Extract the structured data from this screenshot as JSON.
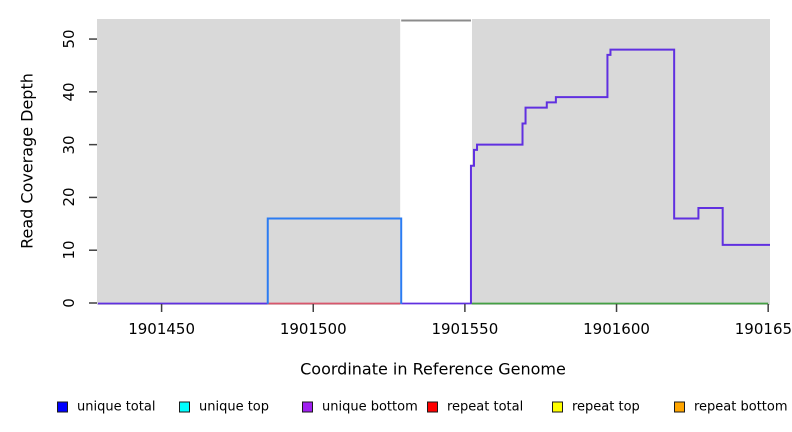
{
  "axes": {
    "x": {
      "label": "Coordinate in Reference Genome",
      "ticks": [
        1901450,
        1901500,
        1901550,
        1901600,
        1901650
      ],
      "domain": [
        1901428.7,
        1901650.6
      ]
    },
    "y": {
      "label": "Read Coverage Depth",
      "ticks": [
        0,
        10,
        20,
        30,
        40,
        50
      ],
      "domain": [
        0,
        53.8
      ]
    }
  },
  "chart_data": {
    "type": "area",
    "description": "Step-style read coverage depth across a reference genome window",
    "x_domain": [
      1901428.7,
      1901650.6
    ],
    "y_domain": [
      0,
      53.8
    ],
    "unique_coverage_steps": [
      {
        "start": 1901552,
        "end": 1901553,
        "depth": 26
      },
      {
        "start": 1901553,
        "end": 1901554,
        "depth": 29
      },
      {
        "start": 1901554,
        "end": 1901569,
        "depth": 30
      },
      {
        "start": 1901569,
        "end": 1901570,
        "depth": 34
      },
      {
        "start": 1901570,
        "end": 1901577,
        "depth": 37
      },
      {
        "start": 1901577,
        "end": 1901580,
        "depth": 38
      },
      {
        "start": 1901580,
        "end": 1901597,
        "depth": 39
      },
      {
        "start": 1901597,
        "end": 1901598,
        "depth": 47
      },
      {
        "start": 1901598,
        "end": 1901619,
        "depth": 48
      },
      {
        "start": 1901619,
        "end": 1901627,
        "depth": 16
      },
      {
        "start": 1901627,
        "end": 1901635,
        "depth": 18
      },
      {
        "start": 1901635,
        "end": 1901651,
        "depth": 11
      }
    ],
    "blue_rect_region": {
      "start": 1901485,
      "end": 1901529,
      "depth": 16
    },
    "masked_region": {
      "start": 1901529,
      "end": 1901552,
      "clipped_depth": 53.5,
      "clipped": true
    },
    "baseline_segments": [
      {
        "start": 1901429,
        "end": 1901485,
        "color_key": "purple"
      },
      {
        "start": 1901485,
        "end": 1901529,
        "color_key": "red"
      },
      {
        "start": 1901529,
        "end": 1901552,
        "color_key": "purple"
      },
      {
        "start": 1901552,
        "end": 1901650,
        "color_key": "green"
      }
    ]
  },
  "legend": {
    "items": [
      {
        "label": "unique total",
        "color": "#0000FF"
      },
      {
        "label": "unique top",
        "color": "#00FFFF"
      },
      {
        "label": "unique bottom",
        "color": "#A020F0"
      },
      {
        "label": "repeat total",
        "color": "#FF0000"
      },
      {
        "label": "repeat top",
        "color": "#FFFF00"
      },
      {
        "label": "repeat bottom",
        "color": "#FFA500"
      }
    ]
  },
  "colors": {
    "plot_bg": "#D9D9D9",
    "masked_band": "#FFFFFF",
    "clipped_line": "#8C8C8C",
    "curve_purple": "#6030E0",
    "rect_blue": "#2B7CF2",
    "baseline_red": "#D8566C",
    "baseline_green": "#44A044",
    "tick": "#404040"
  }
}
